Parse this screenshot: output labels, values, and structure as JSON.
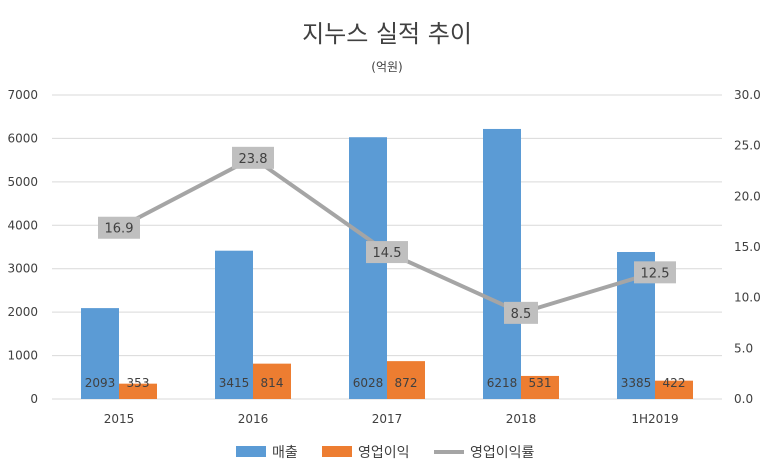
{
  "chart_data": {
    "type": "bar",
    "title": "지누스 실적 추이",
    "subtitle": "(억원)",
    "categories": [
      "2015",
      "2016",
      "2017",
      "2018",
      "1H2019"
    ],
    "series": [
      {
        "name": "매출",
        "kind": "bar",
        "axis": "left",
        "color": "#5b9bd5",
        "values": [
          2093,
          3415,
          6028,
          6218,
          3385
        ]
      },
      {
        "name": "영업이익",
        "kind": "bar",
        "axis": "left",
        "color": "#ed7d31",
        "values": [
          353,
          814,
          872,
          531,
          422
        ]
      },
      {
        "name": "영업이익률",
        "kind": "line",
        "axis": "right",
        "color": "#a5a5a5",
        "values": [
          16.9,
          23.8,
          14.5,
          8.5,
          12.5
        ]
      }
    ],
    "left_axis": {
      "min": 0,
      "max": 7000,
      "step": 1000,
      "ticks": [
        "0",
        "1000",
        "2000",
        "3000",
        "4000",
        "5000",
        "6000",
        "7000"
      ]
    },
    "right_axis": {
      "min": 0,
      "max": 30,
      "step": 5,
      "ticks": [
        "0.0",
        "5.0",
        "10.0",
        "15.0",
        "20.0",
        "25.0",
        "30.0"
      ]
    },
    "bar_labels": [
      [
        "2093",
        "3415",
        "6028",
        "6218",
        "3385"
      ],
      [
        "353",
        "814",
        "872",
        "531",
        "422"
      ]
    ],
    "line_labels": [
      "16.9",
      "23.8",
      "14.5",
      "8.5",
      "12.5"
    ],
    "grid": true,
    "legend_position": "bottom"
  }
}
